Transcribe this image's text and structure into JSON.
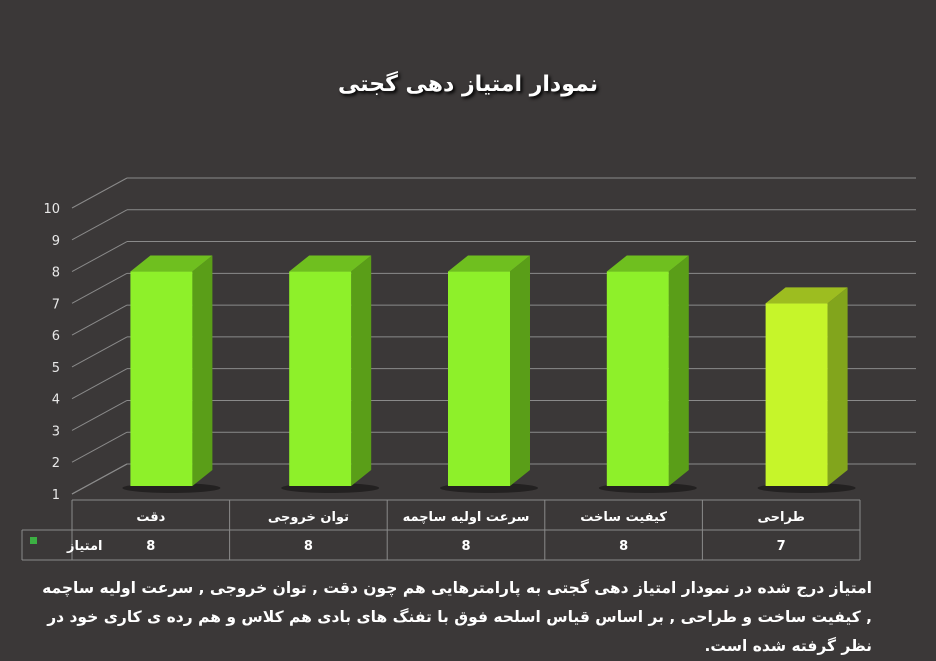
{
  "chart_data": {
    "type": "bar",
    "title": "نمودار امتیاز دهی گجتی",
    "categories": [
      "دقت",
      "توان خروجی",
      "سرعت اولیه ساچمه",
      "کیفیت ساخت",
      "طراحی"
    ],
    "series": [
      {
        "name": "امتیاز",
        "values": [
          8,
          8,
          8,
          8,
          7
        ]
      }
    ],
    "y_ticks": [
      1,
      2,
      3,
      4,
      5,
      6,
      7,
      8,
      9,
      10
    ],
    "ylim": [
      1,
      10
    ],
    "grid": true,
    "legend": "data-table-left",
    "colors": {
      "background": "#3b3838",
      "bar_front": [
        "#8ef02a",
        "#8ef02a",
        "#8ef02a",
        "#8ef02a",
        "#c6f52a"
      ],
      "bar_side": [
        "#5a9e18",
        "#5a9e18",
        "#5a9e18",
        "#5a9e18",
        "#82a51c"
      ],
      "bar_top": [
        "#6fbf1f",
        "#6fbf1f",
        "#6fbf1f",
        "#6fbf1f",
        "#9dbd20"
      ],
      "legend_marker": "#3cb043"
    }
  },
  "caption": "امتیاز درج شده در نمودار امتیاز دهی گجتی به پارامترهایی هم چون دقت , توان خروجی , سرعت اولیه ساچمه , کیفیت ساخت و طراحی , بر اساس قیاس اسلحه فوق با تفنگ های بادی هم کلاس و هم رده ی کاری خود در نظر گرفته شده است."
}
